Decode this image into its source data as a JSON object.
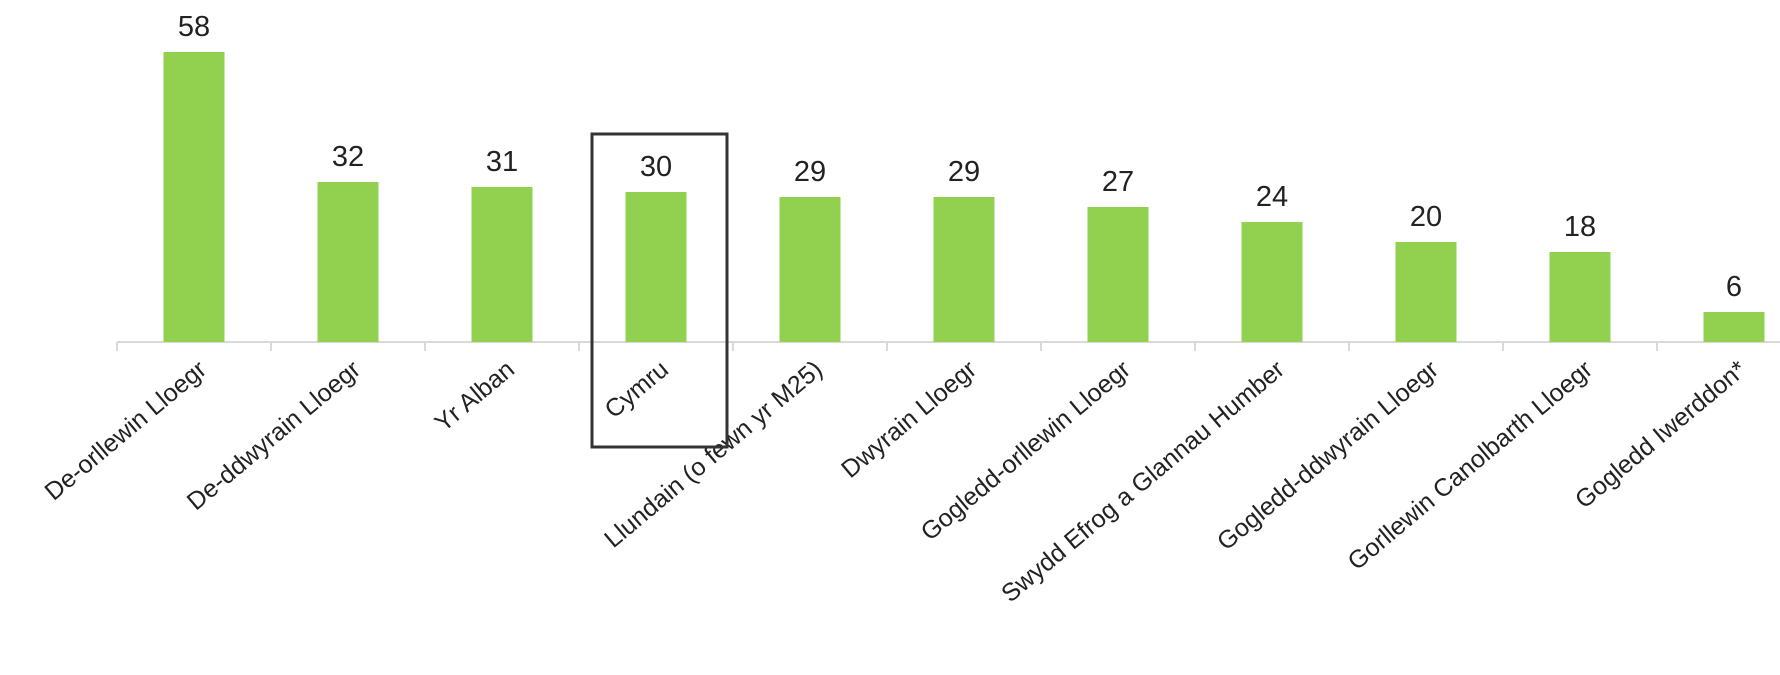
{
  "colors": {
    "bar": "#92d050",
    "axis": "#d9d9d9",
    "highlight_border": "#333333",
    "text": "#222222"
  },
  "chart_data": {
    "type": "bar",
    "categories": [
      "De-orllewin Lloegr",
      "De-ddwyrain Lloegr",
      "Yr Alban",
      "Cymru",
      "Llundain (o fewn yr M25)",
      "Dwyrain Lloegr",
      "Gogledd-orllewin Lloegr",
      "Swydd Efrog a Glannau Humber",
      "Gogledd-ddwyrain Lloegr",
      "Gorllewin Canolbarth Lloegr",
      "Gogledd Iwerddon*"
    ],
    "values": [
      58,
      32,
      31,
      30,
      29,
      29,
      27,
      24,
      20,
      18,
      6
    ],
    "data_labels": [
      "58",
      "32",
      "31",
      "30",
      "29",
      "29",
      "27",
      "24",
      "20",
      "18",
      "6"
    ],
    "highlighted_category": "Cymru",
    "ylim": [
      0,
      68
    ],
    "grid": false,
    "legend": "none"
  }
}
